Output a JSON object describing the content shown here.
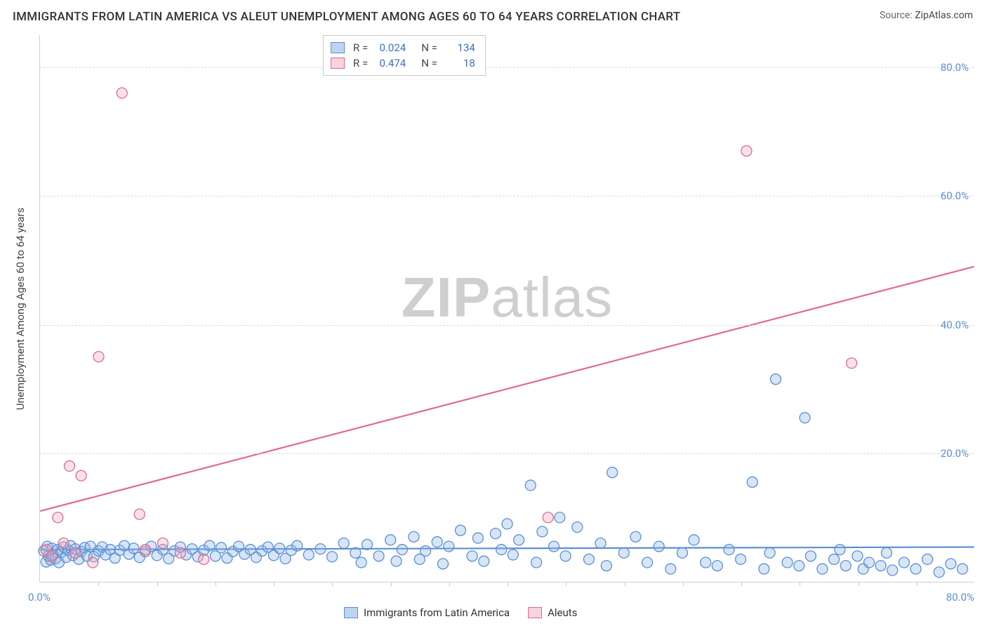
{
  "title": "IMMIGRANTS FROM LATIN AMERICA VS ALEUT UNEMPLOYMENT AMONG AGES 60 TO 64 YEARS CORRELATION CHART",
  "source_label": "Source:",
  "source_value": "ZipAtlas.com",
  "y_axis_title": "Unemployment Among Ages 60 to 64 years",
  "watermark_a": "ZIP",
  "watermark_b": "atlas",
  "chart": {
    "type": "scatter",
    "xlim": [
      0,
      80
    ],
    "ylim": [
      0,
      85
    ],
    "x_origin_label": "0.0%",
    "x_max_label": "80.0%",
    "y_ticks": [
      20,
      40,
      60,
      80
    ],
    "y_tick_labels": [
      "20.0%",
      "40.0%",
      "60.0%",
      "80.0%"
    ],
    "x_minor_ticks": [
      5,
      10,
      15,
      20,
      25,
      30,
      35,
      40,
      45,
      50,
      55,
      60,
      65,
      70,
      75
    ],
    "background_color": "#ffffff",
    "grid_color": "#d8d8d8",
    "marker_radius": 7.5,
    "marker_fill_opacity": 0.35,
    "marker_stroke_width": 1.3,
    "trend_line_width": 2.2,
    "series": [
      {
        "id": "blue",
        "label": "Immigrants from Latin America",
        "fill": "#8bb4e6",
        "stroke": "#5b8fd6",
        "r_value": "0.024",
        "n_value": "134",
        "trend": {
          "y_at_x0": 5.0,
          "y_at_xmax": 5.4
        },
        "points": [
          [
            0.3,
            4.8
          ],
          [
            0.5,
            3.1
          ],
          [
            0.6,
            5.5
          ],
          [
            0.7,
            4.0
          ],
          [
            0.9,
            3.4
          ],
          [
            1.0,
            5.2
          ],
          [
            1.1,
            4.2
          ],
          [
            1.3,
            3.6
          ],
          [
            1.5,
            5.0
          ],
          [
            1.6,
            3.0
          ],
          [
            1.8,
            4.6
          ],
          [
            2.0,
            5.4
          ],
          [
            2.2,
            3.8
          ],
          [
            2.4,
            4.9
          ],
          [
            2.6,
            5.6
          ],
          [
            2.8,
            4.1
          ],
          [
            3.0,
            5.1
          ],
          [
            3.3,
            3.5
          ],
          [
            3.5,
            4.7
          ],
          [
            3.8,
            5.3
          ],
          [
            4.0,
            4.0
          ],
          [
            4.3,
            5.5
          ],
          [
            4.6,
            3.9
          ],
          [
            5.0,
            4.8
          ],
          [
            5.3,
            5.4
          ],
          [
            5.6,
            4.2
          ],
          [
            6.0,
            5.0
          ],
          [
            6.4,
            3.7
          ],
          [
            6.8,
            4.9
          ],
          [
            7.2,
            5.6
          ],
          [
            7.6,
            4.3
          ],
          [
            8.0,
            5.2
          ],
          [
            8.5,
            3.8
          ],
          [
            9.0,
            4.7
          ],
          [
            9.5,
            5.5
          ],
          [
            10.0,
            4.1
          ],
          [
            10.5,
            5.0
          ],
          [
            11.0,
            3.6
          ],
          [
            11.5,
            4.8
          ],
          [
            12.0,
            5.4
          ],
          [
            12.5,
            4.2
          ],
          [
            13.0,
            5.1
          ],
          [
            13.5,
            3.9
          ],
          [
            14.0,
            4.9
          ],
          [
            14.5,
            5.6
          ],
          [
            15.0,
            4.0
          ],
          [
            15.5,
            5.3
          ],
          [
            16.0,
            3.7
          ],
          [
            16.5,
            4.7
          ],
          [
            17.0,
            5.5
          ],
          [
            17.5,
            4.3
          ],
          [
            18.0,
            5.0
          ],
          [
            18.5,
            3.8
          ],
          [
            19.0,
            4.8
          ],
          [
            19.5,
            5.4
          ],
          [
            20.0,
            4.1
          ],
          [
            20.5,
            5.2
          ],
          [
            21.0,
            3.6
          ],
          [
            21.5,
            4.9
          ],
          [
            22.0,
            5.6
          ],
          [
            23.0,
            4.2
          ],
          [
            24.0,
            5.1
          ],
          [
            25.0,
            3.9
          ],
          [
            26.0,
            6.0
          ],
          [
            27.0,
            4.5
          ],
          [
            27.5,
            3.0
          ],
          [
            28.0,
            5.8
          ],
          [
            29.0,
            4.0
          ],
          [
            30.0,
            6.5
          ],
          [
            30.5,
            3.2
          ],
          [
            31.0,
            5.0
          ],
          [
            32.0,
            7.0
          ],
          [
            32.5,
            3.5
          ],
          [
            33.0,
            4.8
          ],
          [
            34.0,
            6.2
          ],
          [
            34.5,
            2.8
          ],
          [
            35.0,
            5.5
          ],
          [
            36.0,
            8.0
          ],
          [
            37.0,
            4.0
          ],
          [
            37.5,
            6.8
          ],
          [
            38.0,
            3.2
          ],
          [
            39.0,
            7.5
          ],
          [
            39.5,
            5.0
          ],
          [
            40.0,
            9.0
          ],
          [
            40.5,
            4.2
          ],
          [
            41.0,
            6.5
          ],
          [
            42.0,
            15.0
          ],
          [
            42.5,
            3.0
          ],
          [
            43.0,
            7.8
          ],
          [
            44.0,
            5.5
          ],
          [
            44.5,
            10.0
          ],
          [
            45.0,
            4.0
          ],
          [
            46.0,
            8.5
          ],
          [
            47.0,
            3.5
          ],
          [
            48.0,
            6.0
          ],
          [
            48.5,
            2.5
          ],
          [
            49.0,
            17.0
          ],
          [
            50.0,
            4.5
          ],
          [
            51.0,
            7.0
          ],
          [
            52.0,
            3.0
          ],
          [
            53.0,
            5.5
          ],
          [
            54.0,
            2.0
          ],
          [
            55.0,
            4.5
          ],
          [
            56.0,
            6.5
          ],
          [
            57.0,
            3.0
          ],
          [
            58.0,
            2.5
          ],
          [
            59.0,
            5.0
          ],
          [
            60.0,
            3.5
          ],
          [
            61.0,
            15.5
          ],
          [
            62.0,
            2.0
          ],
          [
            62.5,
            4.5
          ],
          [
            63.0,
            31.5
          ],
          [
            64.0,
            3.0
          ],
          [
            65.0,
            2.5
          ],
          [
            65.5,
            25.5
          ],
          [
            66.0,
            4.0
          ],
          [
            67.0,
            2.0
          ],
          [
            68.0,
            3.5
          ],
          [
            68.5,
            5.0
          ],
          [
            69.0,
            2.5
          ],
          [
            70.0,
            4.0
          ],
          [
            70.5,
            2.0
          ],
          [
            71.0,
            3.0
          ],
          [
            72.0,
            2.5
          ],
          [
            72.5,
            4.5
          ],
          [
            73.0,
            1.8
          ],
          [
            74.0,
            3.0
          ],
          [
            75.0,
            2.0
          ],
          [
            76.0,
            3.5
          ],
          [
            77.0,
            1.5
          ],
          [
            78.0,
            2.8
          ],
          [
            79.0,
            2.0
          ]
        ]
      },
      {
        "id": "pink",
        "label": "Aleuts",
        "fill": "#f0a8bd",
        "stroke": "#e06a8e",
        "r_value": "0.474",
        "n_value": "18",
        "trend": {
          "y_at_x0": 11.0,
          "y_at_xmax": 49.0
        },
        "points": [
          [
            0.5,
            5.0
          ],
          [
            1.0,
            4.0
          ],
          [
            1.5,
            10.0
          ],
          [
            2.0,
            6.0
          ],
          [
            2.5,
            18.0
          ],
          [
            3.0,
            4.5
          ],
          [
            3.5,
            16.5
          ],
          [
            4.5,
            3.0
          ],
          [
            5.0,
            35.0
          ],
          [
            7.0,
            76.0
          ],
          [
            8.5,
            10.5
          ],
          [
            9.0,
            5.0
          ],
          [
            10.5,
            6.0
          ],
          [
            12.0,
            4.5
          ],
          [
            14.0,
            3.5
          ],
          [
            43.5,
            10.0
          ],
          [
            60.5,
            67.0
          ],
          [
            69.5,
            34.0
          ]
        ]
      }
    ]
  },
  "legend_top": {
    "r_label": "R =",
    "n_label": "N ="
  }
}
